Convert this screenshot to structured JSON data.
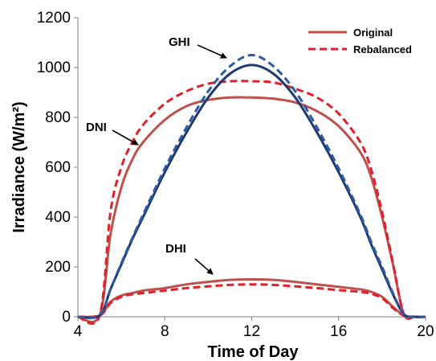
{
  "chart_data": {
    "type": "line",
    "xlabel": "Time of Day",
    "ylabel": "Irradiance (W/m²)",
    "xlim": [
      4,
      20
    ],
    "ylim": [
      0,
      1200
    ],
    "xticks": [
      "4",
      "8",
      "12",
      "16",
      "20"
    ],
    "yticks": [
      "0",
      "200",
      "400",
      "600",
      "800",
      "1000",
      "1200"
    ],
    "grid": false,
    "legend": {
      "position": "top-right",
      "entries": [
        {
          "label": "Original",
          "style": "solid",
          "color": "#c0504d"
        },
        {
          "label": "Rebalanced",
          "style": "dashed",
          "color": "#e0202a"
        }
      ]
    },
    "annotations": [
      "GHI",
      "DNI",
      "DHI"
    ],
    "x": [
      4.0,
      5.0,
      5.5,
      6.0,
      6.5,
      7.0,
      8.0,
      9.0,
      10.0,
      11.0,
      12.0,
      13.0,
      14.0,
      15.0,
      16.0,
      17.0,
      17.5,
      18.0,
      18.5,
      19.0,
      19.5,
      20.0
    ],
    "series": [
      {
        "key": "GHI",
        "variant": "Original",
        "color": "#1f3a6e",
        "style": "solid",
        "values": [
          0,
          5,
          110,
          210,
          310,
          400,
          580,
          740,
          880,
          975,
          1010,
          975,
          880,
          740,
          580,
          400,
          290,
          190,
          90,
          10,
          0,
          0
        ]
      },
      {
        "key": "GHI",
        "variant": "Rebalanced",
        "color": "#2d5aa0",
        "style": "dashed",
        "values": [
          0,
          5,
          110,
          215,
          315,
          410,
          595,
          760,
          905,
          1005,
          1050,
          1005,
          905,
          760,
          595,
          410,
          300,
          200,
          95,
          10,
          0,
          0
        ]
      },
      {
        "key": "DNI",
        "variant": "Original",
        "color": "#c0504d",
        "style": "solid",
        "values": [
          0,
          5,
          330,
          520,
          630,
          700,
          790,
          845,
          870,
          880,
          880,
          875,
          860,
          825,
          765,
          660,
          560,
          400,
          210,
          10,
          0,
          0
        ]
      },
      {
        "key": "DNI",
        "variant": "Rebalanced",
        "color": "#e0202a",
        "style": "dashed",
        "values": [
          0,
          5,
          420,
          600,
          700,
          770,
          855,
          905,
          935,
          945,
          945,
          940,
          915,
          880,
          815,
          700,
          590,
          420,
          215,
          10,
          0,
          0
        ]
      },
      {
        "key": "DHI",
        "variant": "Original",
        "color": "#c0504d",
        "style": "solid",
        "values": [
          0,
          5,
          60,
          85,
          95,
          105,
          115,
          130,
          140,
          148,
          150,
          148,
          140,
          130,
          120,
          110,
          100,
          80,
          40,
          5,
          0,
          0
        ]
      },
      {
        "key": "DHI",
        "variant": "Rebalanced",
        "color": "#e0202a",
        "style": "dashed",
        "values": [
          0,
          5,
          55,
          80,
          90,
          95,
          105,
          115,
          122,
          128,
          130,
          128,
          122,
          115,
          107,
          100,
          92,
          75,
          35,
          5,
          0,
          0
        ]
      }
    ]
  }
}
